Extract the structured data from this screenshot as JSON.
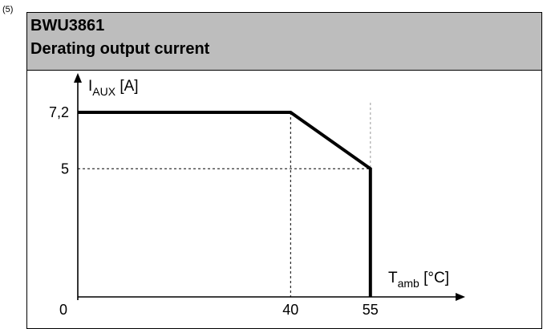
{
  "footnote": "(5)",
  "header": {
    "line1": "BWU3861",
    "line2": "Derating output current"
  },
  "chart_data": {
    "type": "line",
    "title": "Derating output current",
    "ylabel_main": "I",
    "ylabel_sub": "AUX",
    "ylabel_unit": "[A]",
    "xlabel_main": "T",
    "xlabel_sub": "amb",
    "xlabel_unit": "[°C]",
    "origin_label": "0",
    "x_ticks": [
      {
        "value": 40,
        "label": "40"
      },
      {
        "value": 55,
        "label": "55"
      }
    ],
    "y_ticks": [
      {
        "value": 7.2,
        "label": "7,2"
      },
      {
        "value": 5,
        "label": "5"
      }
    ],
    "series": [
      {
        "points": [
          [
            0,
            7.2
          ],
          [
            40,
            7.2
          ],
          [
            55,
            5
          ],
          [
            55,
            0
          ]
        ]
      }
    ],
    "xlim": [
      0,
      65
    ],
    "ylim": [
      0,
      8.2
    ],
    "grid": false,
    "colors": {
      "line": "#000000",
      "guide": "#000000",
      "header_bg": "#bdbdbd"
    }
  }
}
